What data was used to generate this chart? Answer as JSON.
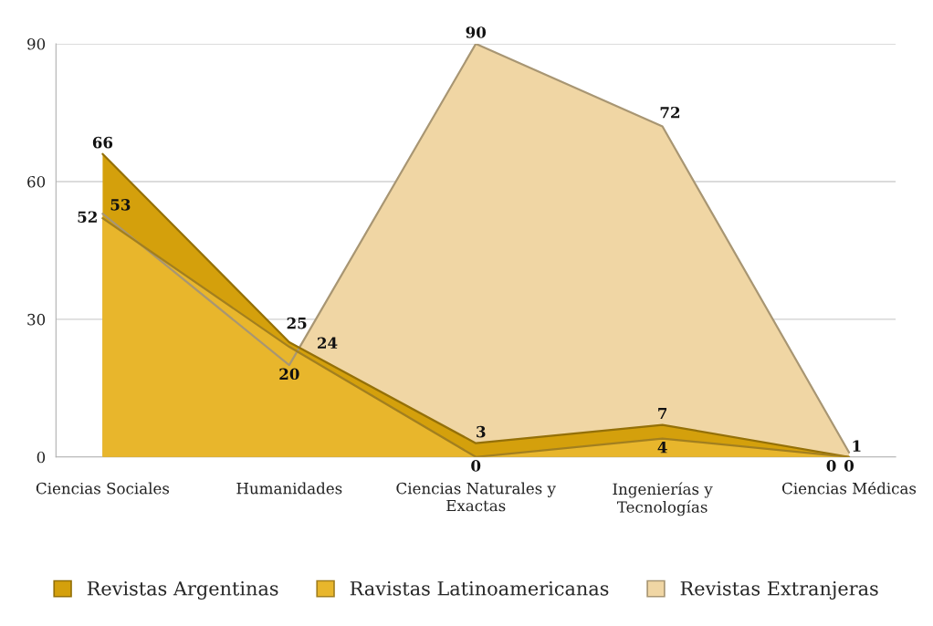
{
  "chart_data": {
    "type": "area",
    "categories": [
      "Ciencias Sociales",
      "Humanidades",
      "Ciencias Naturales y\nExactas",
      "Ingenierías y\nTecnologías",
      "Ciencias Médicas"
    ],
    "series": [
      {
        "name": "Revistas Argentinas",
        "color": "#d4a00c",
        "values": [
          66,
          25,
          3,
          7,
          0
        ]
      },
      {
        "name": "Ravistas Latinoamericanas",
        "color": "#e8b62c",
        "values": [
          52,
          24,
          0,
          4,
          0
        ]
      },
      {
        "name": "Revistas Extranjeras",
        "color": "#f0d6a4",
        "values": [
          53,
          20,
          90,
          72,
          1
        ]
      }
    ],
    "ylim": [
      0,
      90
    ],
    "yticks": [
      0,
      30,
      60,
      90
    ],
    "grid": "y",
    "legend": "bottom",
    "data_labels": true
  }
}
